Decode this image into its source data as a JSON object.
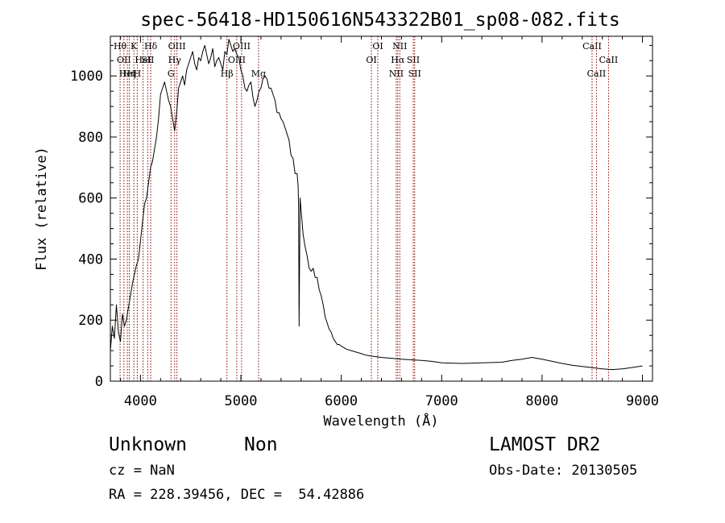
{
  "chart_data": {
    "type": "line",
    "title": "spec-56418-HD150616N543322B01_sp08-082.fits",
    "xlabel": "Wavelength (Å)",
    "ylabel": "Flux (relative)",
    "xlim": [
      3700,
      9100
    ],
    "ylim": [
      0,
      1130
    ],
    "x_ticks": [
      4000,
      5000,
      6000,
      7000,
      8000,
      9000
    ],
    "y_ticks": [
      0,
      200,
      400,
      600,
      800,
      1000
    ],
    "grid": false,
    "series": [
      {
        "x": [
          3700,
          3720,
          3740,
          3760,
          3780,
          3800,
          3820,
          3840,
          3860,
          3880,
          3900,
          3920,
          3940,
          3960,
          3980,
          4000,
          4020,
          4040,
          4060,
          4080,
          4100,
          4120,
          4140,
          4160,
          4180,
          4200,
          4220,
          4240,
          4260,
          4280,
          4300,
          4320,
          4340,
          4360,
          4380,
          4400,
          4420,
          4440,
          4460,
          4480,
          4500,
          4520,
          4540,
          4560,
          4580,
          4600,
          4620,
          4640,
          4660,
          4680,
          4700,
          4720,
          4740,
          4760,
          4780,
          4800,
          4820,
          4840,
          4860,
          4880,
          4900,
          4920,
          4940,
          4960,
          4980,
          5000,
          5020,
          5040,
          5060,
          5080,
          5100,
          5120,
          5140,
          5160,
          5180,
          5200,
          5220,
          5240,
          5260,
          5280,
          5300,
          5320,
          5340,
          5360,
          5380,
          5400,
          5420,
          5440,
          5460,
          5480,
          5500,
          5520,
          5540,
          5560,
          5570,
          5575,
          5580,
          5590,
          5600,
          5620,
          5640,
          5660,
          5680,
          5700,
          5720,
          5740,
          5760,
          5780,
          5800,
          5820,
          5840,
          5860,
          5880,
          5900,
          5920,
          5940,
          5960,
          5980,
          6000,
          6050,
          6100,
          6150,
          6200,
          6250,
          6300,
          6350,
          6400,
          6500,
          6600,
          6700,
          6800,
          6900,
          7000,
          7200,
          7400,
          7600,
          7700,
          7800,
          7900,
          8000,
          8100,
          8200,
          8300,
          8400,
          8500,
          8600,
          8700,
          8800,
          8900,
          9000
        ],
        "values": [
          100,
          180,
          140,
          250,
          160,
          130,
          220,
          180,
          200,
          240,
          280,
          320,
          350,
          380,
          400,
          460,
          520,
          580,
          600,
          650,
          700,
          720,
          760,
          800,
          860,
          940,
          960,
          980,
          950,
          920,
          900,
          860,
          820,
          880,
          960,
          980,
          1000,
          970,
          1020,
          1040,
          1060,
          1080,
          1040,
          1020,
          1060,
          1050,
          1080,
          1100,
          1070,
          1040,
          1060,
          1090,
          1030,
          1050,
          1060,
          1040,
          1020,
          1080,
          1070,
          1120,
          1100,
          1080,
          1090,
          1070,
          1060,
          1020,
          1000,
          960,
          950,
          970,
          980,
          930,
          900,
          920,
          950,
          960,
          990,
          1000,
          990,
          960,
          960,
          940,
          920,
          880,
          880,
          860,
          850,
          830,
          810,
          790,
          740,
          730,
          680,
          680,
          640,
          560,
          180,
          600,
          560,
          480,
          440,
          410,
          370,
          360,
          370,
          340,
          340,
          300,
          280,
          250,
          210,
          190,
          170,
          160,
          140,
          130,
          120,
          120,
          115,
          105,
          100,
          95,
          90,
          85,
          82,
          80,
          78,
          75,
          72,
          70,
          68,
          65,
          60,
          58,
          60,
          62,
          68,
          72,
          78,
          72,
          65,
          58,
          52,
          48,
          44,
          40,
          38,
          40,
          45,
          50
        ]
      }
    ],
    "lines": [
      {
        "x": 3797,
        "label": "Hθ",
        "row": 0
      },
      {
        "x": 3835,
        "label": "OII",
        "row": 1
      },
      {
        "x": 3869,
        "label": "HeI",
        "row": 2
      },
      {
        "x": 3889,
        "label": "Hη",
        "row": 2
      },
      {
        "x": 3934,
        "label": "K",
        "row": 0
      },
      {
        "x": 3968,
        "label": "H",
        "row": 2
      },
      {
        "x": 4026,
        "label": "HeI",
        "row": 1
      },
      {
        "x": 4072,
        "label": "SII",
        "row": 1
      },
      {
        "x": 4102,
        "label": "Hδ",
        "row": 0
      },
      {
        "x": 4304,
        "label": "G",
        "row": 2
      },
      {
        "x": 4340,
        "label": "Hγ",
        "row": 1
      },
      {
        "x": 4363,
        "label": "OIII",
        "row": 0
      },
      {
        "x": 4861,
        "label": "Hβ",
        "row": 2
      },
      {
        "x": 4959,
        "label": "OIII",
        "row": 1
      },
      {
        "x": 5007,
        "label": "OIII",
        "row": 0
      },
      {
        "x": 5176,
        "label": "Mg",
        "row": 2
      },
      {
        "x": 6300,
        "label": "OI",
        "row": 1
      },
      {
        "x": 6364,
        "label": "OI",
        "row": 0
      },
      {
        "x": 6548,
        "label": "NII",
        "row": 2
      },
      {
        "x": 6563,
        "label": "Hα",
        "row": 1
      },
      {
        "x": 6583,
        "label": "NII",
        "row": 0
      },
      {
        "x": 6717,
        "label": "SII",
        "row": 1
      },
      {
        "x": 6731,
        "label": "SII",
        "row": 2
      },
      {
        "x": 8498,
        "label": "CaII",
        "row": 0
      },
      {
        "x": 8542,
        "label": "CaII",
        "row": 2
      },
      {
        "x": 8662,
        "label": "CaII",
        "row": 1
      }
    ],
    "colors": {
      "spectrum": "#000000",
      "lines": "#8b0000",
      "axis": "#000000"
    }
  },
  "info": {
    "object_class": "Unknown",
    "subclass": "Non",
    "cz": "cz = NaN",
    "coords": "RA = 228.39456, DEC =  54.42886",
    "survey": "LAMOST DR2",
    "obs_date": "Obs-Date: 20130505"
  }
}
